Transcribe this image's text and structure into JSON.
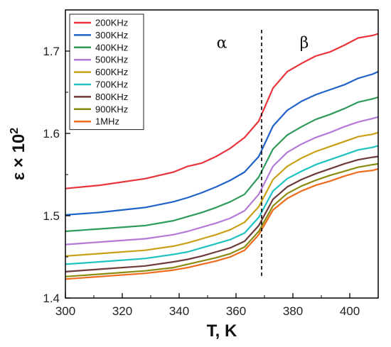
{
  "chart_data": {
    "type": "line",
    "xlabel": "T, K",
    "ylabel": "ε × 10",
    "ylabel_exp": "2",
    "xlim": [
      300,
      410
    ],
    "ylim": [
      1.4,
      1.75
    ],
    "xticks": [
      300,
      320,
      340,
      360,
      380,
      400
    ],
    "xtick_labels": [
      "300",
      "320",
      "340",
      "360",
      "380",
      "400"
    ],
    "yticks": [
      1.4,
      1.5,
      1.6,
      1.7
    ],
    "ytick_labels": [
      "1.4",
      "1.5",
      "1.6",
      "1.7"
    ],
    "transition_x": 369,
    "annotations": [
      {
        "text": "α",
        "x": 355,
        "y": 1.71
      },
      {
        "text": "β",
        "x": 384,
        "y": 1.71
      }
    ],
    "legend_position": "top-left",
    "grid": false,
    "x": [
      300,
      312,
      328,
      338,
      343,
      348,
      353,
      358,
      363,
      368,
      373,
      378,
      383,
      388,
      393,
      398,
      403,
      408,
      410
    ],
    "series": [
      {
        "name": "200KHz",
        "color": "#e8343a",
        "values": [
          1.533,
          1.537,
          1.545,
          1.553,
          1.56,
          1.564,
          1.572,
          1.582,
          1.595,
          1.615,
          1.655,
          1.675,
          1.685,
          1.694,
          1.699,
          1.707,
          1.716,
          1.719,
          1.721
        ]
      },
      {
        "name": "300KHz",
        "color": "#1f62c8",
        "values": [
          1.501,
          1.504,
          1.51,
          1.517,
          1.522,
          1.528,
          1.535,
          1.543,
          1.553,
          1.572,
          1.609,
          1.628,
          1.639,
          1.647,
          1.653,
          1.659,
          1.667,
          1.672,
          1.675
        ]
      },
      {
        "name": "400KHz",
        "color": "#2e9a5c",
        "values": [
          1.481,
          1.484,
          1.488,
          1.494,
          1.499,
          1.504,
          1.51,
          1.517,
          1.526,
          1.547,
          1.581,
          1.598,
          1.608,
          1.617,
          1.623,
          1.63,
          1.638,
          1.642,
          1.644
        ]
      },
      {
        "name": "500KHz",
        "color": "#b57ad8",
        "values": [
          1.465,
          1.468,
          1.472,
          1.477,
          1.481,
          1.486,
          1.491,
          1.497,
          1.506,
          1.526,
          1.56,
          1.577,
          1.587,
          1.595,
          1.601,
          1.608,
          1.614,
          1.618,
          1.62
        ]
      },
      {
        "name": "600KHz",
        "color": "#c8a015",
        "values": [
          1.451,
          1.454,
          1.458,
          1.463,
          1.467,
          1.472,
          1.477,
          1.483,
          1.492,
          1.511,
          1.544,
          1.56,
          1.57,
          1.578,
          1.584,
          1.59,
          1.596,
          1.599,
          1.601
        ]
      },
      {
        "name": "700KHz",
        "color": "#1ec2c0",
        "values": [
          1.441,
          1.444,
          1.448,
          1.453,
          1.456,
          1.461,
          1.466,
          1.471,
          1.479,
          1.498,
          1.53,
          1.545,
          1.554,
          1.562,
          1.568,
          1.574,
          1.58,
          1.583,
          1.585
        ]
      },
      {
        "name": "800KHz",
        "color": "#6e3a3a",
        "values": [
          1.432,
          1.435,
          1.439,
          1.444,
          1.447,
          1.451,
          1.456,
          1.461,
          1.469,
          1.488,
          1.52,
          1.535,
          1.544,
          1.551,
          1.557,
          1.563,
          1.568,
          1.571,
          1.572
        ]
      },
      {
        "name": "900KHz",
        "color": "#8a8c10",
        "values": [
          1.426,
          1.429,
          1.433,
          1.437,
          1.441,
          1.445,
          1.449,
          1.454,
          1.462,
          1.481,
          1.512,
          1.527,
          1.536,
          1.543,
          1.549,
          1.554,
          1.559,
          1.562,
          1.563
        ]
      },
      {
        "name": "1MHz",
        "color": "#f06a1c",
        "values": [
          1.423,
          1.426,
          1.43,
          1.434,
          1.437,
          1.441,
          1.445,
          1.45,
          1.458,
          1.477,
          1.507,
          1.521,
          1.53,
          1.537,
          1.542,
          1.548,
          1.553,
          1.555,
          1.557
        ]
      }
    ]
  }
}
